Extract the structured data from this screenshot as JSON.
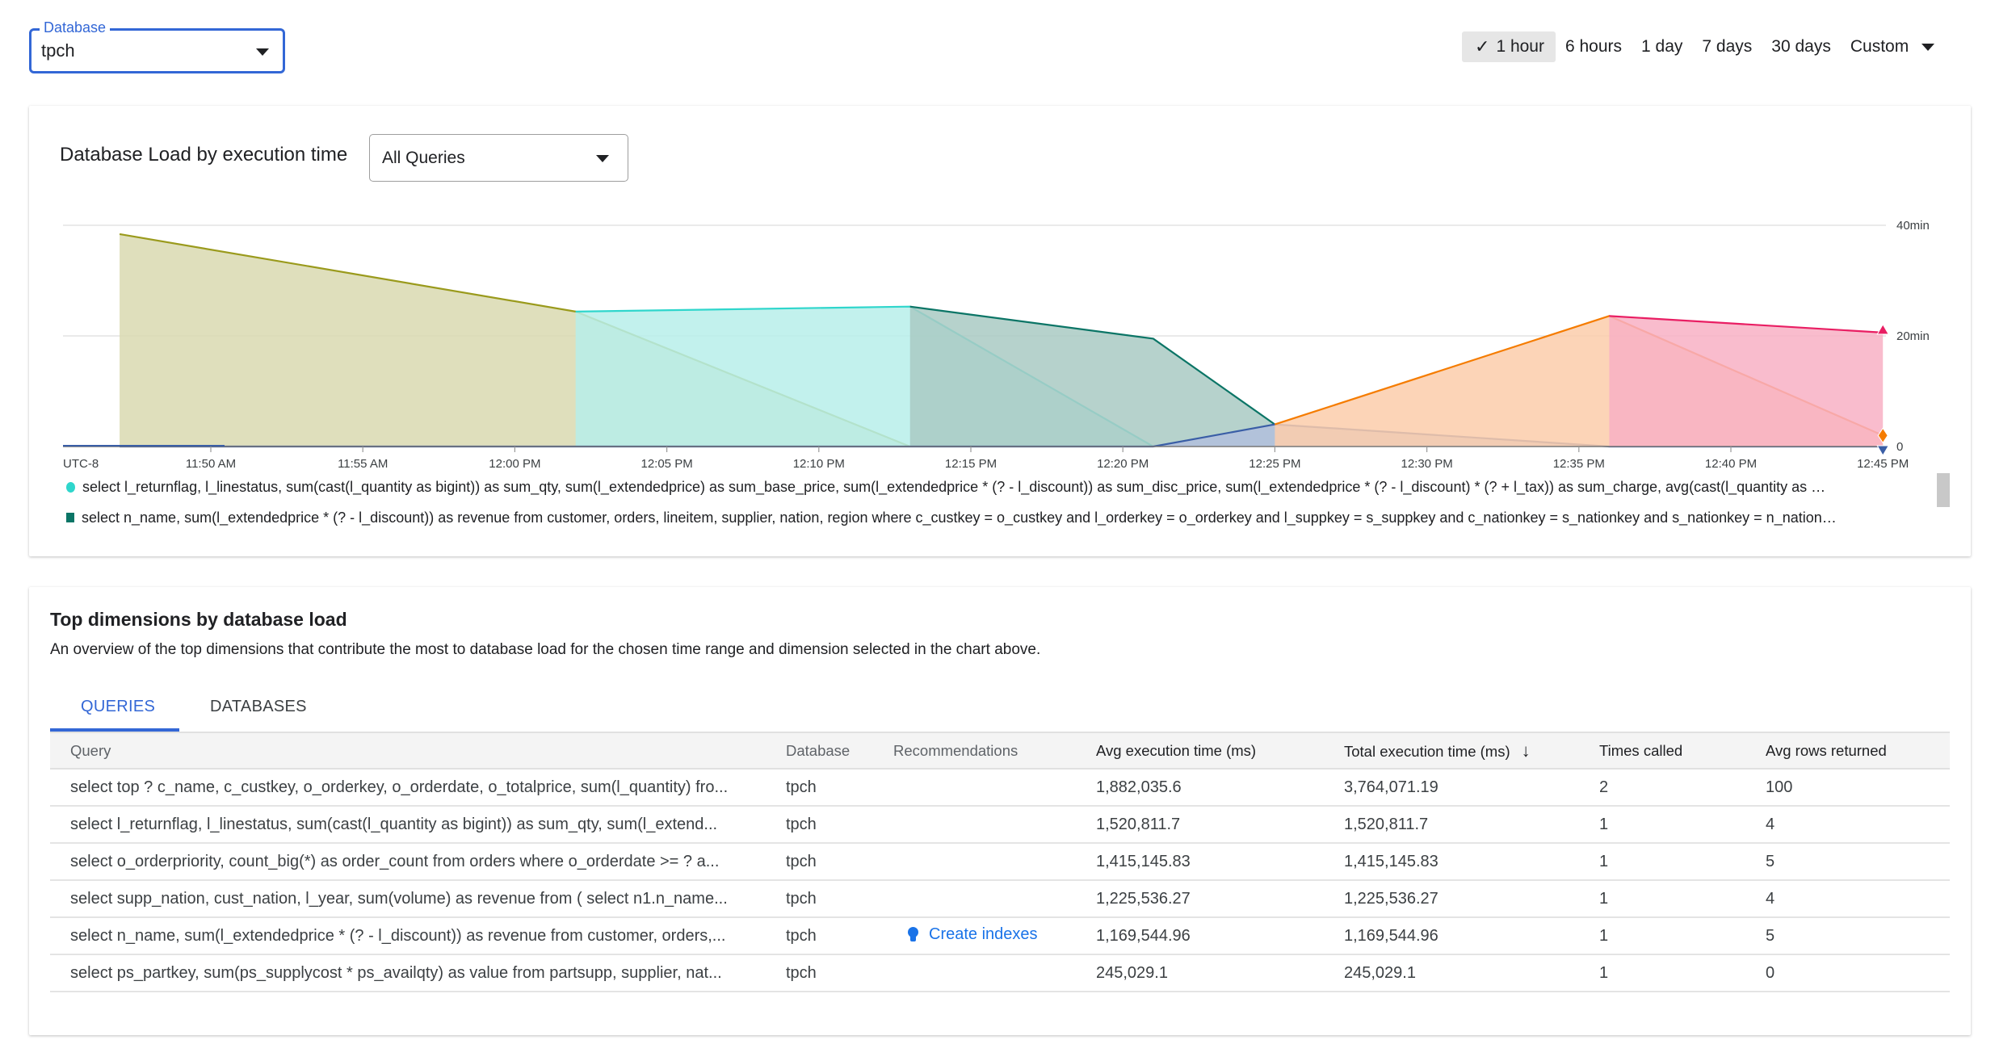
{
  "database_select": {
    "label": "Database",
    "value": "tpch"
  },
  "time_range": {
    "options": [
      "1 hour",
      "6 hours",
      "1 day",
      "7 days",
      "30 days"
    ],
    "selected": "1 hour",
    "custom_label": "Custom"
  },
  "load_card": {
    "title": "Database Load by execution time",
    "query_filter": "All Queries"
  },
  "chart_data": {
    "type": "area",
    "timezone_label": "UTC-8",
    "x_ticks": [
      "11:50 AM",
      "11:55 AM",
      "12:00 PM",
      "12:05 PM",
      "12:10 PM",
      "12:15 PM",
      "12:20 PM",
      "12:25 PM",
      "12:30 PM",
      "12:35 PM",
      "12:40 PM",
      "12:45 PM"
    ],
    "y_ticks": [
      "0",
      "20min",
      "40min"
    ],
    "ylim_min": [
      0,
      40
    ],
    "grid": true,
    "series": [
      {
        "color": "#9a9a1c",
        "fill": "#d9d9b0",
        "points": [
          [
            "11:47",
            38.4
          ],
          [
            "12:02",
            24.4
          ],
          [
            "12:13",
            0
          ]
        ]
      },
      {
        "name": "select l_returnflag, l_linestatus, sum(cast(l_quantity as bigint)) as sum_qty, sum(l_extendedprice) as sum_base_price, sum(l_extendedprice * (? - l_discount)) as sum_disc_price, sum(l_extendedprice * (? - l_discount) * (? + l_tax)) as sum_charge, avg(cast(l_quantity as …",
        "color": "#2fd6cc",
        "fill": "#b7eeea",
        "points": [
          [
            "12:02",
            24.4
          ],
          [
            "12:13",
            25.3
          ],
          [
            "12:21",
            0
          ]
        ]
      },
      {
        "name": "select n_name, sum(l_extendedprice * (? - l_discount)) as revenue from customer, orders, lineitem, supplier, nation, region where c_custkey = o_custkey and l_orderkey = o_orderkey and l_suppkey = s_suppkey and c_nationkey = s_nationkey and s_nationkey = n_nation…",
        "color": "#0b7566",
        "fill": "#a9cac3",
        "points": [
          [
            "12:13",
            25.3
          ],
          [
            "12:21",
            19.5
          ],
          [
            "12:25",
            4.0
          ]
        ]
      },
      {
        "color": "#3a5ea6",
        "fill": "#b1bfdc",
        "points": [
          [
            "11:47",
            0
          ],
          [
            "12:21",
            0
          ],
          [
            "12:25",
            4.0
          ],
          [
            "12:36",
            0
          ],
          [
            "12:45",
            0
          ]
        ],
        "end_marker": "triangle-down"
      },
      {
        "color": "#f57c00",
        "fill": "#fbccaa",
        "points": [
          [
            "12:25",
            4.0
          ],
          [
            "12:36",
            23.6
          ],
          [
            "12:45",
            2.0
          ]
        ],
        "end_marker": "diamond"
      },
      {
        "color": "#e91e63",
        "fill": "#f8b0c4",
        "points": [
          [
            "12:36",
            23.6
          ],
          [
            "12:45",
            20.6
          ]
        ],
        "end_marker": "triangle-up"
      }
    ],
    "legend": [
      {
        "marker": "circle",
        "color": "#2fd6cc",
        "text": "select l_returnflag, l_linestatus, sum(cast(l_quantity as bigint)) as sum_qty, sum(l_extendedprice) as sum_base_price, sum(l_extendedprice * (? - l_discount)) as sum_disc_price, sum(l_extendedprice * (? - l_discount) * (? + l_tax)) as sum_charge, avg(cast(l_quantity as …"
      },
      {
        "marker": "square",
        "color": "#0b7566",
        "text": "select n_name, sum(l_extendedprice * (? - l_discount)) as revenue from customer, orders, lineitem, supplier, nation, region where c_custkey = o_custkey and l_orderkey = o_orderkey and l_suppkey = s_suppkey and c_nationkey = s_nationkey and s_nationkey = n_nation…"
      }
    ]
  },
  "dimensions": {
    "title": "Top dimensions by database load",
    "description": "An overview of the top dimensions that contribute the most to database load for the chosen time range and dimension selected in the chart above.",
    "tabs": [
      "QUERIES",
      "DATABASES"
    ],
    "active_tab": "QUERIES",
    "columns": [
      "Query",
      "Database",
      "Recommendations",
      "Avg execution time (ms)",
      "Total execution time (ms)",
      "Times called",
      "Avg rows returned"
    ],
    "sort_column": "Total execution time (ms)",
    "rows": [
      {
        "query": "select top ? c_name, c_custkey, o_orderkey, o_orderdate, o_totalprice, sum(l_quantity) fro...",
        "database": "tpch",
        "recommendation": "",
        "avg_ms": "1,882,035.6",
        "total_ms": "3,764,071.19",
        "times_called": "2",
        "avg_rows": "100"
      },
      {
        "query": "select l_returnflag, l_linestatus, sum(cast(l_quantity as bigint)) as sum_qty, sum(l_extend...",
        "database": "tpch",
        "recommendation": "",
        "avg_ms": "1,520,811.7",
        "total_ms": "1,520,811.7",
        "times_called": "1",
        "avg_rows": "4"
      },
      {
        "query": "select o_orderpriority, count_big(*) as order_count from orders where o_orderdate >= ? a...",
        "database": "tpch",
        "recommendation": "",
        "avg_ms": "1,415,145.83",
        "total_ms": "1,415,145.83",
        "times_called": "1",
        "avg_rows": "5"
      },
      {
        "query": "select supp_nation, cust_nation, l_year, sum(volume) as revenue from ( select n1.n_name...",
        "database": "tpch",
        "recommendation": "",
        "avg_ms": "1,225,536.27",
        "total_ms": "1,225,536.27",
        "times_called": "1",
        "avg_rows": "4"
      },
      {
        "query": "select n_name, sum(l_extendedprice * (? - l_discount)) as revenue from customer, orders,...",
        "database": "tpch",
        "recommendation": "Create indexes",
        "avg_ms": "1,169,544.96",
        "total_ms": "1,169,544.96",
        "times_called": "1",
        "avg_rows": "5"
      },
      {
        "query": "select ps_partkey, sum(ps_supplycost * ps_availqty) as value from partsupp, supplier, nat...",
        "database": "tpch",
        "recommendation": "",
        "avg_ms": "245,029.1",
        "total_ms": "245,029.1",
        "times_called": "1",
        "avg_rows": "0"
      }
    ]
  }
}
